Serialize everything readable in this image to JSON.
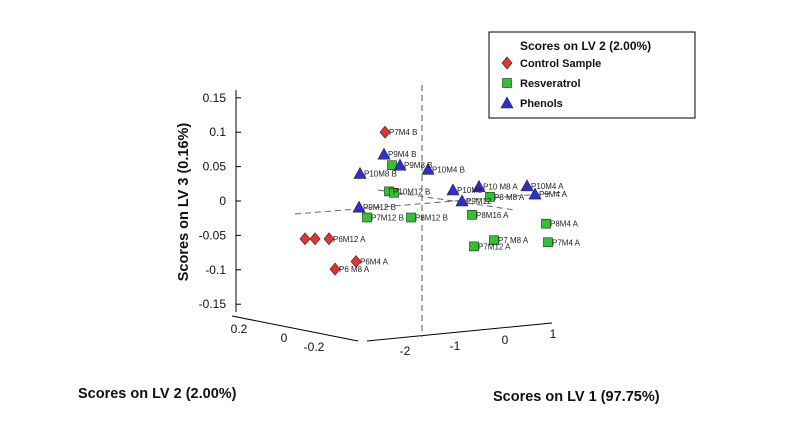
{
  "chart_data": {
    "type": "scatter",
    "projection": "3d",
    "xlabel": "Scores on LV 1 (97.75%)",
    "ylabel": "Scores on LV 2 (2.00%)",
    "zlabel": "Scores on LV 3 (0.16%)",
    "x_ticks": [
      "-2",
      "-1",
      "0",
      "1"
    ],
    "y_ticks": [
      "0.2",
      "0",
      "-0.2"
    ],
    "z_ticks": [
      "0.15",
      "0.1",
      "0.05",
      "0",
      "-0.05",
      "-0.1",
      "-0.15"
    ],
    "legend": {
      "title": "Scores on LV 2 (2.00%)",
      "placement": "top-right"
    },
    "series": [
      {
        "name": "Control Sample",
        "marker": "diamond",
        "color": "#e8322c",
        "points": [
          {
            "label": "P7M4 B",
            "lv3": 0.1
          },
          {
            "label": "P6M12 A",
            "lv3": -0.055
          },
          {
            "label": "",
            "lv3": -0.055
          },
          {
            "label": "",
            "lv3": -0.055
          },
          {
            "label": "P6M4 A",
            "lv3": -0.088
          },
          {
            "label": "P6 M8 A",
            "lv3": -0.099
          }
        ]
      },
      {
        "name": "Resveratrol",
        "marker": "square",
        "color": "#2ec42e",
        "points": [
          {
            "label": "",
            "lv3": 0.052
          },
          {
            "label": "P10M12 B",
            "lv3": 0.014
          },
          {
            "label": "",
            "lv3": 0.012
          },
          {
            "label": "P7M12 B",
            "lv3": -0.024
          },
          {
            "label": "P8M12 B",
            "lv3": -0.024
          },
          {
            "label": "P8 M8 A",
            "lv3": 0.006
          },
          {
            "label": "P8M16 A",
            "lv3": -0.02
          },
          {
            "label": "P7 M8 A",
            "lv3": -0.057
          },
          {
            "label": "P7M12 A",
            "lv3": -0.066
          },
          {
            "label": "P8M4 A",
            "lv3": -0.033
          },
          {
            "label": "P7M4 A",
            "lv3": -0.06
          }
        ]
      },
      {
        "name": "Phenols",
        "marker": "triangle",
        "color": "#2e2ed6",
        "points": [
          {
            "label": "P9M4 B",
            "lv3": 0.068
          },
          {
            "label": "P9M8 B",
            "lv3": 0.052
          },
          {
            "label": "P10M4 B",
            "lv3": 0.046
          },
          {
            "label": "P10M8 B",
            "lv3": 0.04
          },
          {
            "label": "P9M12 B",
            "lv3": -0.009
          },
          {
            "label": "P10M8",
            "lv3": 0.016
          },
          {
            "label": "P9M12",
            "lv3": 0.0
          },
          {
            "label": "P10 M8 A",
            "lv3": 0.021
          },
          {
            "label": "P10M4 A",
            "lv3": 0.022
          },
          {
            "label": "P9M4 A",
            "lv3": 0.01
          }
        ]
      }
    ]
  }
}
